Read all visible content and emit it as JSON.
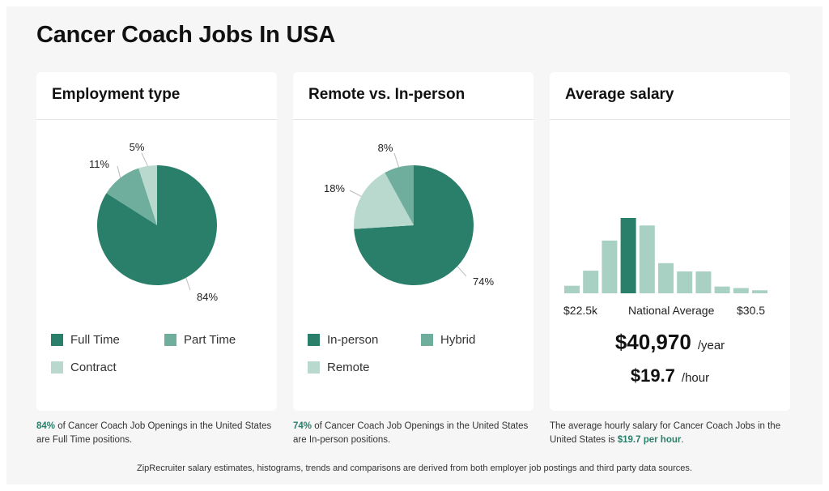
{
  "page": {
    "title": "Cancer Coach Jobs In USA"
  },
  "colors": {
    "dark": "#2a7f6a",
    "mid": "#6fae9c",
    "light": "#b9d9cf"
  },
  "cards": [
    {
      "title": "Employment type",
      "legend": [
        "Full Time",
        "Part Time",
        "Contract"
      ],
      "caption": {
        "highlight": "84%",
        "text": " of Cancer Coach Job Openings in the United States are Full Time positions."
      }
    },
    {
      "title": "Remote vs. In-person",
      "legend": [
        "In-person",
        "Hybrid",
        "Remote"
      ],
      "caption": {
        "highlight": "74%",
        "text": " of Cancer Coach Job Openings in the United States are In-person positions."
      }
    },
    {
      "title": "Average salary",
      "range_low": "$22.5k",
      "range_mid": "National Average",
      "range_high": "$30.5",
      "yearly": "$40,970",
      "yearly_unit": "/year",
      "hourly": "$19.7",
      "hourly_unit": "/hour",
      "caption": {
        "text": "The average hourly salary for Cancer Coach Jobs in the United States is ",
        "highlight": "$19.7 per hour",
        "end": "."
      }
    }
  ],
  "footer": "ZipRecruiter salary estimates, histograms, trends and comparisons are derived from both employer job postings and third party data sources.",
  "chart_data": [
    {
      "type": "pie",
      "title": "Employment type",
      "categories": [
        "Full Time",
        "Part Time",
        "Contract"
      ],
      "values": [
        84,
        11,
        5
      ],
      "labels": [
        "84%",
        "11%",
        "5%"
      ],
      "colors": [
        "#2a7f6a",
        "#6fae9c",
        "#b9d9cf"
      ]
    },
    {
      "type": "pie",
      "title": "Remote vs. In-person",
      "categories": [
        "In-person",
        "Remote",
        "Hybrid"
      ],
      "values": [
        74,
        18,
        8
      ],
      "labels": [
        "74%",
        "18%",
        "8%"
      ],
      "colors": [
        "#2a7f6a",
        "#b9d9cf",
        "#6fae9c"
      ]
    },
    {
      "type": "bar",
      "title": "Average salary",
      "values": [
        0.1,
        0.3,
        0.7,
        1.0,
        0.9,
        0.4,
        0.29,
        0.29,
        0.09,
        0.07,
        0.04
      ],
      "highlight_index": 3,
      "colors": {
        "bar": "#a8d0c3",
        "highlight": "#2a7f6a"
      }
    }
  ]
}
